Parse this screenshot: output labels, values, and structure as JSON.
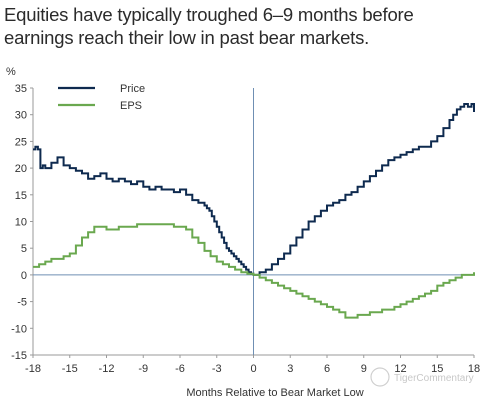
{
  "chart_data": {
    "type": "line",
    "title_lines": [
      "Equities have typically troughed 6–9 months before",
      "earnings reach their low in past bear markets."
    ],
    "ylabel": "%",
    "xlabel": "Months Relative to Bear Market Low",
    "xlim": [
      -18,
      18
    ],
    "ylim": [
      -15,
      35
    ],
    "x_ticks": [
      -18,
      -15,
      -12,
      -9,
      -6,
      -3,
      0,
      3,
      6,
      9,
      12,
      15,
      18
    ],
    "y_ticks": [
      35,
      30,
      25,
      20,
      15,
      10,
      5,
      0,
      -5,
      -10,
      -15
    ],
    "grid": false,
    "legend_position": "top-left",
    "series": [
      {
        "name": "Price",
        "color": "#0e2a4f",
        "x": [
          -18,
          -17.8,
          -17.6,
          -17.4,
          -17.2,
          -17,
          -16.5,
          -16,
          -15.5,
          -15,
          -14.5,
          -14,
          -13.5,
          -13,
          -12.5,
          -12,
          -11.5,
          -11,
          -10.5,
          -10,
          -9.5,
          -9,
          -8.5,
          -8,
          -7.5,
          -7,
          -6.5,
          -6,
          -5.5,
          -5,
          -4.5,
          -4,
          -3.8,
          -3.6,
          -3.4,
          -3.2,
          -3,
          -2.8,
          -2.6,
          -2.4,
          -2.2,
          -2,
          -1.8,
          -1.6,
          -1.4,
          -1.2,
          -1,
          -0.8,
          -0.6,
          -0.4,
          -0.2,
          0,
          0.5,
          1,
          1.5,
          2,
          2.5,
          3,
          3.5,
          4,
          4.5,
          5,
          5.5,
          6,
          6.5,
          7,
          7.5,
          8,
          8.5,
          9,
          9.5,
          10,
          10.5,
          11,
          11.5,
          12,
          12.5,
          13,
          13.5,
          14,
          14.5,
          15,
          15.5,
          16,
          16.3,
          16.6,
          16.9,
          17.2,
          17.5,
          17.8,
          18
        ],
        "values": [
          23.5,
          24,
          23.5,
          20,
          20.5,
          20,
          21,
          22,
          20.5,
          20,
          19.5,
          19,
          18,
          18.5,
          19,
          18,
          17.5,
          18,
          17.5,
          17,
          17.5,
          16.5,
          16,
          16.5,
          16,
          16,
          15.5,
          16,
          15,
          14,
          13.5,
          13,
          12.5,
          12,
          11,
          10,
          9,
          8,
          7,
          6,
          5,
          4.5,
          4,
          3.5,
          3,
          2.5,
          2,
          1.5,
          1,
          0.5,
          0.2,
          0,
          0.5,
          1,
          2,
          3,
          4,
          5.5,
          7,
          8.5,
          10,
          11,
          12,
          13,
          13.5,
          14,
          15,
          15.5,
          16.5,
          17.5,
          18.5,
          19.5,
          20.5,
          21.5,
          22,
          22.5,
          23,
          23.5,
          24,
          24,
          25,
          26,
          27.5,
          29,
          30,
          31,
          31.5,
          32,
          31.5,
          32,
          30.5
        ]
      },
      {
        "name": "EPS",
        "color": "#6aa84f",
        "x": [
          -18,
          -17.5,
          -17,
          -16.5,
          -16,
          -15.5,
          -15,
          -14.5,
          -14,
          -13.5,
          -13,
          -12.5,
          -12,
          -11.5,
          -11,
          -10.5,
          -10,
          -9.5,
          -9,
          -8.5,
          -8,
          -7.5,
          -7,
          -6.5,
          -6,
          -5.5,
          -5,
          -4.5,
          -4,
          -3.5,
          -3,
          -2.5,
          -2,
          -1.5,
          -1,
          -0.5,
          0,
          0.5,
          1,
          1.5,
          2,
          2.5,
          3,
          3.5,
          4,
          4.5,
          5,
          5.5,
          6,
          6.5,
          7,
          7.5,
          8,
          8.5,
          9,
          9.5,
          10,
          10.5,
          11,
          11.5,
          12,
          12.5,
          13,
          13.5,
          14,
          14.5,
          15,
          15.5,
          16,
          16.5,
          17,
          17.5,
          18
        ],
        "values": [
          1.5,
          2,
          2.5,
          3,
          3,
          3.5,
          4,
          5.5,
          7,
          8,
          9,
          9,
          8.5,
          8.5,
          9,
          9,
          9,
          9.5,
          9.5,
          9.5,
          9.5,
          9.5,
          9.5,
          9,
          9,
          8.5,
          7,
          6,
          4.5,
          3.5,
          2.5,
          2,
          1.5,
          1,
          0.5,
          0.2,
          0,
          -0.5,
          -1,
          -1.5,
          -2,
          -2.5,
          -3,
          -3.5,
          -4,
          -4.5,
          -5,
          -5.5,
          -6,
          -6.5,
          -7,
          -8,
          -8,
          -7.5,
          -7.5,
          -7,
          -7,
          -6.5,
          -6.5,
          -6,
          -5.5,
          -5,
          -4.5,
          -4,
          -3.5,
          -3,
          -2,
          -1.5,
          -1,
          -0.5,
          0,
          0,
          0.5
        ]
      }
    ],
    "watermark": "TigerCommentary"
  }
}
